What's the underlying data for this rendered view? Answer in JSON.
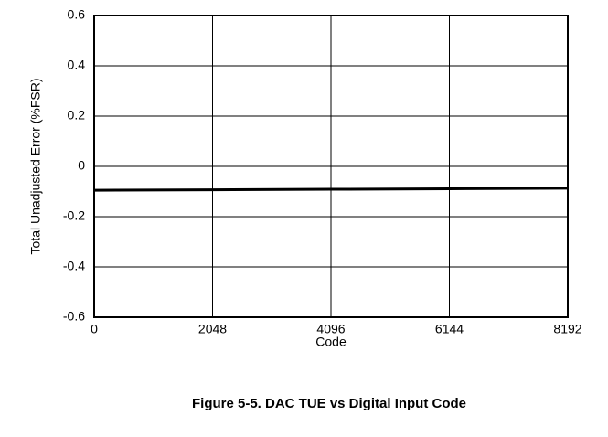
{
  "chart_data": {
    "type": "line",
    "title": "Figure 5-5. DAC TUE vs Digital Input Code",
    "x_label": "Code",
    "y_label": "Total Unadjusted Error (%FSR)",
    "x": [
      0,
      2048,
      4096,
      6144,
      8192
    ],
    "series": [
      {
        "name": "TUE",
        "color": "#000000",
        "values": [
          -0.095,
          -0.093,
          -0.091,
          -0.089,
          -0.087
        ]
      }
    ],
    "xlim": [
      0,
      8192
    ],
    "xticks": [
      0,
      2048,
      4096,
      6144,
      8192
    ],
    "ylim": [
      -0.6,
      0.6
    ],
    "yticks": [
      0.6,
      0.4,
      0.2,
      0,
      -0.2,
      -0.4,
      -0.6
    ],
    "grid": true
  }
}
